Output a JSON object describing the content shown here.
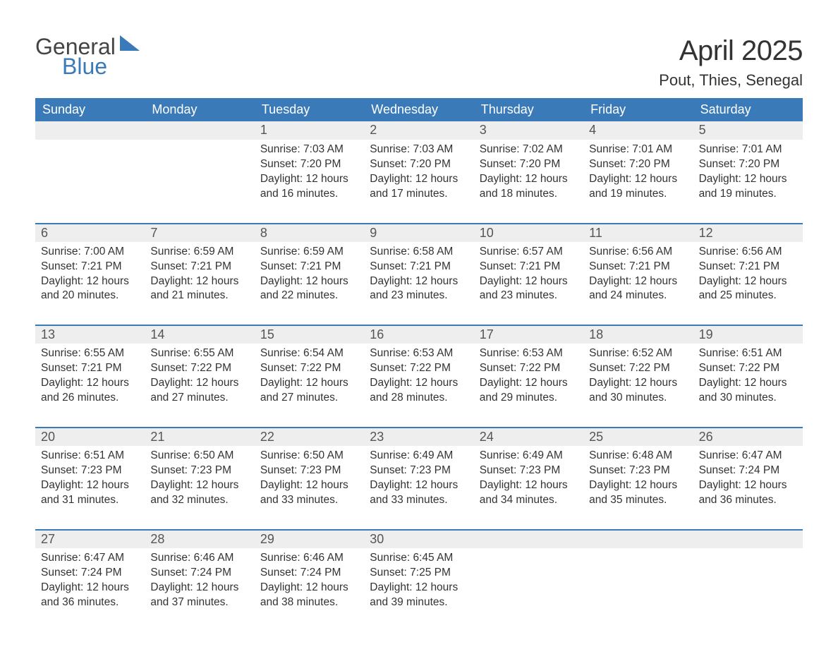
{
  "brand": {
    "part1": "General",
    "part2": "Blue"
  },
  "title": "April 2025",
  "location": "Pout, Thies, Senegal",
  "colors": {
    "header_bg": "#3a7ab8",
    "daynum_bg": "#eeeeee",
    "border_top": "#3a7ab8",
    "text": "#333333",
    "background": "#ffffff"
  },
  "typography": {
    "title_fontsize": 40,
    "location_fontsize": 22,
    "dow_fontsize": 18,
    "daynum_fontsize": 18,
    "detail_fontsize": 15.5
  },
  "days_of_week": [
    "Sunday",
    "Monday",
    "Tuesday",
    "Wednesday",
    "Thursday",
    "Friday",
    "Saturday"
  ],
  "weeks": [
    [
      {
        "n": "",
        "sunrise": "",
        "sunset": "",
        "daylight": ""
      },
      {
        "n": "",
        "sunrise": "",
        "sunset": "",
        "daylight": ""
      },
      {
        "n": "1",
        "sunrise": "7:03 AM",
        "sunset": "7:20 PM",
        "daylight": "12 hours and 16 minutes."
      },
      {
        "n": "2",
        "sunrise": "7:03 AM",
        "sunset": "7:20 PM",
        "daylight": "12 hours and 17 minutes."
      },
      {
        "n": "3",
        "sunrise": "7:02 AM",
        "sunset": "7:20 PM",
        "daylight": "12 hours and 18 minutes."
      },
      {
        "n": "4",
        "sunrise": "7:01 AM",
        "sunset": "7:20 PM",
        "daylight": "12 hours and 19 minutes."
      },
      {
        "n": "5",
        "sunrise": "7:01 AM",
        "sunset": "7:20 PM",
        "daylight": "12 hours and 19 minutes."
      }
    ],
    [
      {
        "n": "6",
        "sunrise": "7:00 AM",
        "sunset": "7:21 PM",
        "daylight": "12 hours and 20 minutes."
      },
      {
        "n": "7",
        "sunrise": "6:59 AM",
        "sunset": "7:21 PM",
        "daylight": "12 hours and 21 minutes."
      },
      {
        "n": "8",
        "sunrise": "6:59 AM",
        "sunset": "7:21 PM",
        "daylight": "12 hours and 22 minutes."
      },
      {
        "n": "9",
        "sunrise": "6:58 AM",
        "sunset": "7:21 PM",
        "daylight": "12 hours and 23 minutes."
      },
      {
        "n": "10",
        "sunrise": "6:57 AM",
        "sunset": "7:21 PM",
        "daylight": "12 hours and 23 minutes."
      },
      {
        "n": "11",
        "sunrise": "6:56 AM",
        "sunset": "7:21 PM",
        "daylight": "12 hours and 24 minutes."
      },
      {
        "n": "12",
        "sunrise": "6:56 AM",
        "sunset": "7:21 PM",
        "daylight": "12 hours and 25 minutes."
      }
    ],
    [
      {
        "n": "13",
        "sunrise": "6:55 AM",
        "sunset": "7:21 PM",
        "daylight": "12 hours and 26 minutes."
      },
      {
        "n": "14",
        "sunrise": "6:55 AM",
        "sunset": "7:22 PM",
        "daylight": "12 hours and 27 minutes."
      },
      {
        "n": "15",
        "sunrise": "6:54 AM",
        "sunset": "7:22 PM",
        "daylight": "12 hours and 27 minutes."
      },
      {
        "n": "16",
        "sunrise": "6:53 AM",
        "sunset": "7:22 PM",
        "daylight": "12 hours and 28 minutes."
      },
      {
        "n": "17",
        "sunrise": "6:53 AM",
        "sunset": "7:22 PM",
        "daylight": "12 hours and 29 minutes."
      },
      {
        "n": "18",
        "sunrise": "6:52 AM",
        "sunset": "7:22 PM",
        "daylight": "12 hours and 30 minutes."
      },
      {
        "n": "19",
        "sunrise": "6:51 AM",
        "sunset": "7:22 PM",
        "daylight": "12 hours and 30 minutes."
      }
    ],
    [
      {
        "n": "20",
        "sunrise": "6:51 AM",
        "sunset": "7:23 PM",
        "daylight": "12 hours and 31 minutes."
      },
      {
        "n": "21",
        "sunrise": "6:50 AM",
        "sunset": "7:23 PM",
        "daylight": "12 hours and 32 minutes."
      },
      {
        "n": "22",
        "sunrise": "6:50 AM",
        "sunset": "7:23 PM",
        "daylight": "12 hours and 33 minutes."
      },
      {
        "n": "23",
        "sunrise": "6:49 AM",
        "sunset": "7:23 PM",
        "daylight": "12 hours and 33 minutes."
      },
      {
        "n": "24",
        "sunrise": "6:49 AM",
        "sunset": "7:23 PM",
        "daylight": "12 hours and 34 minutes."
      },
      {
        "n": "25",
        "sunrise": "6:48 AM",
        "sunset": "7:23 PM",
        "daylight": "12 hours and 35 minutes."
      },
      {
        "n": "26",
        "sunrise": "6:47 AM",
        "sunset": "7:24 PM",
        "daylight": "12 hours and 36 minutes."
      }
    ],
    [
      {
        "n": "27",
        "sunrise": "6:47 AM",
        "sunset": "7:24 PM",
        "daylight": "12 hours and 36 minutes."
      },
      {
        "n": "28",
        "sunrise": "6:46 AM",
        "sunset": "7:24 PM",
        "daylight": "12 hours and 37 minutes."
      },
      {
        "n": "29",
        "sunrise": "6:46 AM",
        "sunset": "7:24 PM",
        "daylight": "12 hours and 38 minutes."
      },
      {
        "n": "30",
        "sunrise": "6:45 AM",
        "sunset": "7:25 PM",
        "daylight": "12 hours and 39 minutes."
      },
      {
        "n": "",
        "sunrise": "",
        "sunset": "",
        "daylight": ""
      },
      {
        "n": "",
        "sunrise": "",
        "sunset": "",
        "daylight": ""
      },
      {
        "n": "",
        "sunrise": "",
        "sunset": "",
        "daylight": ""
      }
    ]
  ],
  "labels": {
    "sunrise": "Sunrise: ",
    "sunset": "Sunset: ",
    "daylight": "Daylight: "
  }
}
